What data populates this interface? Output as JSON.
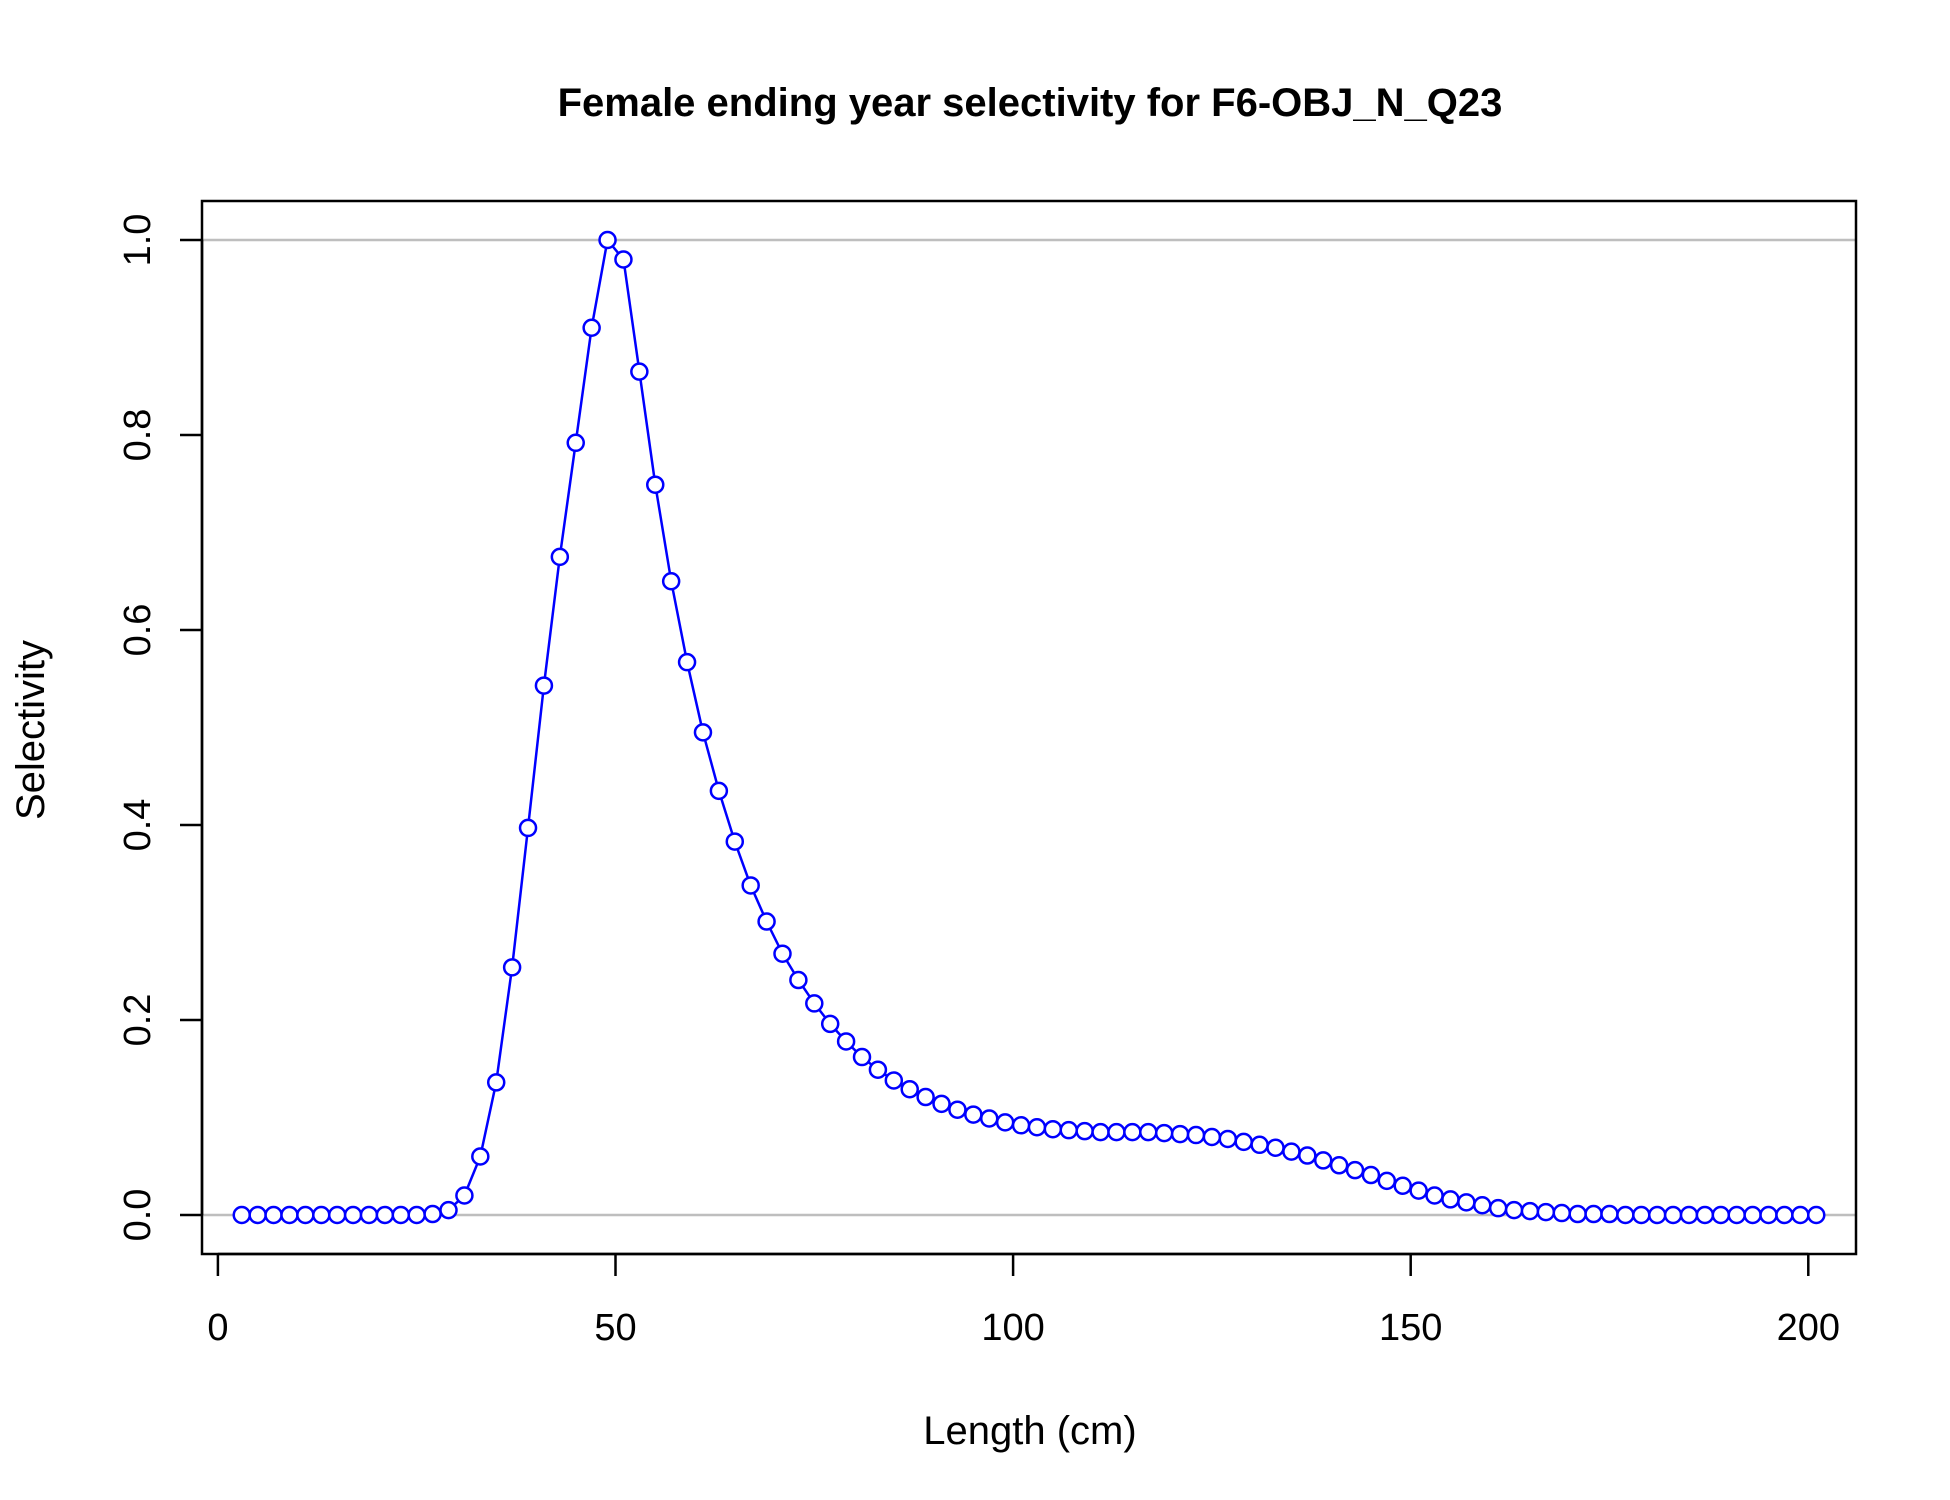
{
  "chart_data": {
    "type": "line",
    "title": "Female ending year selectivity for F6-OBJ_N_Q23",
    "xlabel": "Length (cm)",
    "ylabel": "Selectivity",
    "xlim": [
      -2,
      206
    ],
    "ylim": [
      -0.04,
      1.04
    ],
    "xticks": [
      0,
      50,
      100,
      150,
      200
    ],
    "xtick_labels": [
      "0",
      "50",
      "100",
      "150",
      "200"
    ],
    "yticks": [
      0.0,
      0.2,
      0.4,
      0.6,
      0.8,
      1.0
    ],
    "ytick_labels": [
      "0.0",
      "0.2",
      "0.4",
      "0.6",
      "0.8",
      "1.0"
    ],
    "reference_lines": [
      0,
      1
    ],
    "grid": false,
    "legend": "none",
    "colors": {
      "series": "#0000ff",
      "reference": "#bebebe",
      "axes": "#000000"
    },
    "series": [
      {
        "x": [
          3,
          5,
          7,
          9,
          11,
          13,
          15,
          17,
          19,
          21,
          23,
          25,
          27,
          29,
          31,
          33,
          35,
          37,
          39,
          41,
          43,
          45,
          47,
          49,
          51,
          53,
          55,
          57,
          59,
          61,
          63,
          65,
          67,
          69,
          71,
          73,
          75,
          77,
          79,
          81,
          83,
          85,
          87,
          89,
          91,
          93,
          95,
          97,
          99,
          101,
          103,
          105,
          107,
          109,
          111,
          113,
          115,
          117,
          119,
          121,
          123,
          125,
          127,
          129,
          131,
          133,
          135,
          137,
          139,
          141,
          143,
          145,
          147,
          149,
          151,
          153,
          155,
          157,
          159,
          161,
          163,
          165,
          167,
          169,
          171,
          173,
          175,
          177,
          179,
          181,
          183,
          185,
          187,
          189,
          191,
          193,
          195,
          197,
          199,
          201
        ],
        "values": [
          0,
          0,
          0,
          0,
          0,
          0,
          0,
          0,
          0,
          0,
          0,
          0,
          0.001,
          0.005,
          0.02,
          0.06,
          0.136,
          0.254,
          0.397,
          0.543,
          0.675,
          0.792,
          0.91,
          1.0,
          0.98,
          0.865,
          0.749,
          0.65,
          0.567,
          0.495,
          0.435,
          0.383,
          0.338,
          0.301,
          0.268,
          0.241,
          0.217,
          0.196,
          0.178,
          0.162,
          0.149,
          0.138,
          0.129,
          0.121,
          0.114,
          0.108,
          0.103,
          0.099,
          0.095,
          0.092,
          0.09,
          0.088,
          0.087,
          0.086,
          0.085,
          0.085,
          0.085,
          0.085,
          0.084,
          0.083,
          0.082,
          0.08,
          0.078,
          0.075,
          0.072,
          0.069,
          0.065,
          0.061,
          0.056,
          0.051,
          0.046,
          0.041,
          0.035,
          0.03,
          0.025,
          0.02,
          0.016,
          0.013,
          0.01,
          0.007,
          0.005,
          0.004,
          0.003,
          0.002,
          0.001,
          0.001,
          0.001,
          0,
          0,
          0,
          0,
          0,
          0,
          0,
          0,
          0,
          0,
          0,
          0,
          0
        ]
      }
    ]
  }
}
